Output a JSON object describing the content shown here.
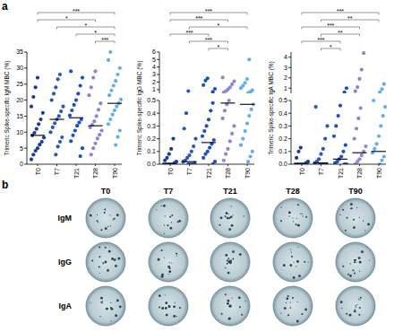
{
  "panel_labels": [
    "a",
    "b"
  ],
  "chart_data": [
    {
      "type": "scatter",
      "y_label": "Trimeric Spike-specific IgM MBC (%)",
      "categories": [
        "T0",
        "T7",
        "T21",
        "T28",
        "T90"
      ],
      "colors": [
        "#1b3c8f",
        "#2a56b8",
        "#1d4fc4",
        "#8a86d6",
        "#62aee8"
      ],
      "segments": [
        {
          "ylim": [
            0,
            35
          ],
          "yticks": [
            0,
            5,
            10,
            15,
            20,
            25,
            30,
            35
          ],
          "series": [
            {
              "values": [
                1.5,
                3,
                4.2,
                5,
                6.1,
                7,
                8.3,
                9,
                9.8,
                11,
                12.5,
                14,
                16,
                18,
                21,
                24,
                27
              ]
            },
            {
              "values": [
                3,
                5.5,
                7,
                8.4,
                10,
                11.5,
                12.8,
                14,
                15,
                16.5,
                18,
                20,
                22,
                24,
                26.5,
                28
              ]
            },
            {
              "values": [
                2.5,
                5,
                7.2,
                9,
                10.5,
                12,
                13,
                14,
                15.2,
                16.8,
                18.5,
                20,
                22,
                24.5,
                27,
                29
              ]
            },
            {
              "values": [
                3,
                5,
                6.5,
                8,
                9.2,
                10.5,
                11.5,
                12.3,
                13.4,
                15,
                17,
                19,
                21.5,
                24,
                27,
                29
              ]
            },
            {
              "values": [
                6,
                8.5,
                10.5,
                12.5,
                14,
                15.5,
                16.8,
                18,
                19,
                20.2,
                21.5,
                23,
                24.5,
                26,
                28,
                30,
                32.5,
                35
              ]
            }
          ],
          "medians": [
            9,
            14,
            14.5,
            12,
            19
          ]
        }
      ],
      "annotations": [
        {
          "from": "T0",
          "to": "T90",
          "label": "***"
        },
        {
          "from": "T0",
          "to": "T28",
          "label": "*"
        },
        {
          "from": "T7",
          "to": "T90",
          "label": "*"
        },
        {
          "from": "T21",
          "to": "T90",
          "label": "*"
        },
        {
          "from": "T28",
          "to": "T90",
          "label": "***"
        }
      ]
    },
    {
      "type": "scatter",
      "y_label": "Trimeric Spike-specific IgG MBC (%)",
      "categories": [
        "T0",
        "T7",
        "T21",
        "T28",
        "T90"
      ],
      "colors": [
        "#1b3c8f",
        "#2a56b8",
        "#1d4fc4",
        "#8a86d6",
        "#62aee8"
      ],
      "segments": [
        {
          "ylim": [
            0.5,
            6
          ],
          "yticks": [
            1,
            2,
            3,
            4,
            5,
            6
          ],
          "series": [
            {
              "values": []
            },
            {
              "values": [
                0.8
              ]
            },
            {
              "values": [
                0.7,
                1.1,
                1.6,
                2.2,
                2.5
              ]
            },
            {
              "values": [
                0.6,
                0.8,
                1.0,
                1.3,
                1.7,
                2.1,
                2.6
              ]
            },
            {
              "values": [
                0.55,
                0.7,
                0.9,
                1.2,
                1.5,
                1.9,
                2.4,
                5
              ]
            }
          ]
        },
        {
          "ylim": [
            0,
            0.5
          ],
          "yticks": [
            {
              "value": 0,
              "label": "0.0"
            },
            0.1,
            0.2,
            0.3,
            0.4,
            0.5
          ],
          "series": [
            {
              "values": [
                0,
                0,
                0,
                0,
                0,
                0.01,
                0.02,
                0.03,
                0.05,
                0.08,
                0.12,
                0.2
              ]
            },
            {
              "values": [
                0,
                0,
                0,
                0.01,
                0.02,
                0.03,
                0.05,
                0.07,
                0.1,
                0.14,
                0.2,
                0.28,
                0.4
              ]
            },
            {
              "values": [
                0,
                0.02,
                0.05,
                0.08,
                0.1,
                0.13,
                0.16,
                0.19,
                0.22,
                0.26,
                0.3,
                0.35,
                0.42,
                0.48
              ]
            },
            {
              "values": [
                0.03,
                0.08,
                0.12,
                0.18,
                0.24,
                0.3,
                0.36,
                0.42,
                0.47,
                0.5
              ]
            },
            {
              "values": [
                0.02,
                0.06,
                0.1,
                0.15,
                0.2,
                0.26,
                0.32,
                0.38,
                0.43,
                0.47
              ]
            }
          ],
          "medians": [
            0,
            0.02,
            0.17,
            0.48,
            0.47
          ]
        }
      ],
      "annotations": [
        {
          "from": "T0",
          "to": "T90",
          "label": "***"
        },
        {
          "from": "T0",
          "to": "T28",
          "label": "***"
        },
        {
          "from": "T7",
          "to": "T90",
          "label": "*"
        },
        {
          "from": "T0",
          "to": "T21",
          "label": "***"
        },
        {
          "from": "T7",
          "to": "T28",
          "label": "***"
        },
        {
          "from": "T21",
          "to": "T28",
          "label": "*"
        }
      ]
    },
    {
      "type": "scatter",
      "y_label": "Trimeric Spike-specific IgA MBC (%)",
      "categories": [
        "T0",
        "T7",
        "T21",
        "T28",
        "T90"
      ],
      "colors": [
        "#1b3c8f",
        "#2a56b8",
        "#1d4fc4",
        "#8a86d6",
        "#62aee8"
      ],
      "segments": [
        {
          "ylim": [
            0.5,
            4.5
          ],
          "yticks": [
            1,
            2,
            3,
            4
          ],
          "series": [
            {
              "values": []
            },
            {
              "values": []
            },
            {
              "values": [
                0.6,
                1.0
              ]
            },
            {
              "values": [
                0.7,
                1.1,
                1.9,
                2.8,
                4.4
              ]
            },
            {
              "values": [
                0.6,
                0.9,
                1.4
              ]
            }
          ]
        },
        {
          "ylim": [
            0,
            0.5
          ],
          "yticks": [
            {
              "value": 0,
              "label": "0.0"
            },
            0.1,
            0.2,
            0.3,
            0.4,
            0.5
          ],
          "series": [
            {
              "values": [
                0,
                0,
                0,
                0,
                0,
                0.01,
                0.02,
                0.05,
                0.1,
                0.13
              ]
            },
            {
              "values": [
                0,
                0,
                0,
                0,
                0.01,
                0.02,
                0.04,
                0.08,
                0.12,
                0.2,
                0.3,
                0.45
              ]
            },
            {
              "values": [
                0,
                0,
                0.01,
                0.02,
                0.04,
                0.06,
                0.1,
                0.15,
                0.22,
                0.3,
                0.38,
                0.46
              ]
            },
            {
              "values": [
                0,
                0.02,
                0.04,
                0.07,
                0.1,
                0.14,
                0.2,
                0.28,
                0.36,
                0.44
              ]
            },
            {
              "values": [
                0,
                0.03,
                0.06,
                0.09,
                0.12,
                0.16,
                0.22,
                0.3,
                0.38,
                0.45,
                0.5
              ]
            }
          ],
          "medians": [
            0,
            0.01,
            0.04,
            0.09,
            0.1
          ]
        }
      ],
      "annotations": [
        {
          "from": "T0",
          "to": "T90",
          "label": "***"
        },
        {
          "from": "T7",
          "to": "T90",
          "label": "**"
        },
        {
          "from": "T0",
          "to": "T28",
          "label": "***"
        },
        {
          "from": "T7",
          "to": "T28",
          "label": "**"
        },
        {
          "from": "T0",
          "to": "T21",
          "label": "***"
        },
        {
          "from": "T7",
          "to": "T21",
          "label": "*"
        }
      ]
    }
  ],
  "wells": {
    "columns": [
      "T0",
      "T7",
      "T21",
      "T28",
      "T90"
    ],
    "rows": [
      "IgM",
      "IgG",
      "IgA"
    ]
  }
}
